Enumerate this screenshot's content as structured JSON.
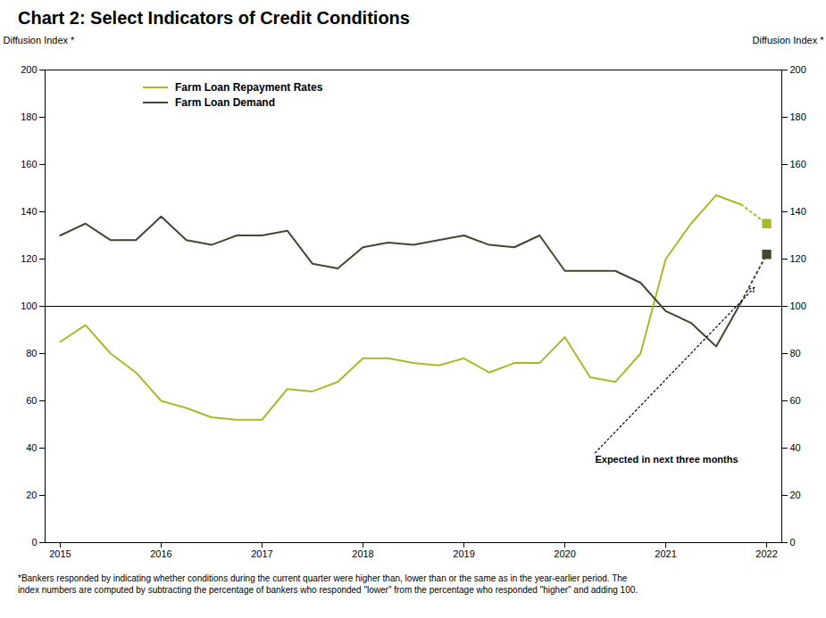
{
  "chart_data": {
    "type": "line",
    "title": "Chart 2: Select Indicators of Credit Conditions",
    "ylabel": "Diffusion Index *",
    "y2label": "Diffusion Index *",
    "footnote": "*Bankers responded by indicating  whether conditions  during the current quarter were higher than, lower than or the same as in the year-earlier period. The\nindex numbers are computed by subtracting the percentage of bankers who responded \"lower\"  from the percentage who responded \"higher\"  and adding 100.",
    "x": [
      2015.0,
      2015.25,
      2015.5,
      2015.75,
      2016.0,
      2016.25,
      2016.5,
      2016.75,
      2017.0,
      2017.25,
      2017.5,
      2017.75,
      2018.0,
      2018.25,
      2018.5,
      2018.75,
      2019.0,
      2019.25,
      2019.5,
      2019.75,
      2020.0,
      2020.25,
      2020.5,
      2020.75,
      2021.0,
      2021.25,
      2021.5,
      2021.75,
      2022.0
    ],
    "series": [
      {
        "name": "Farm Loan Repayment Rates",
        "color": "#aaba27",
        "line_style": "solid",
        "values": [
          85,
          92,
          80,
          72,
          60,
          57,
          53,
          52,
          52,
          65,
          64,
          68,
          78,
          78,
          76,
          75,
          78,
          72,
          76,
          76,
          87,
          70,
          68,
          80,
          120,
          135,
          147,
          143,
          null
        ]
      },
      {
        "color": "#aaba27",
        "line_style": "dotted",
        "values": [
          null,
          null,
          null,
          null,
          null,
          null,
          null,
          null,
          null,
          null,
          null,
          null,
          null,
          null,
          null,
          null,
          null,
          null,
          null,
          null,
          null,
          null,
          null,
          null,
          null,
          null,
          null,
          143,
          135
        ]
      },
      {
        "color": "#aaba27",
        "type": "scatter",
        "marker": "square",
        "values": [
          null,
          null,
          null,
          null,
          null,
          null,
          null,
          null,
          null,
          null,
          null,
          null,
          null,
          null,
          null,
          null,
          null,
          null,
          null,
          null,
          null,
          null,
          null,
          null,
          null,
          null,
          null,
          null,
          135
        ]
      },
      {
        "name": "Farm Loan Demand",
        "color": "#3d4a2e",
        "line_style": "solid",
        "values": [
          130,
          135,
          128,
          128,
          138,
          128,
          126,
          130,
          130,
          132,
          118,
          116,
          125,
          127,
          126,
          128,
          130,
          126,
          125,
          130,
          115,
          115,
          115,
          110,
          98,
          93,
          83,
          102,
          null
        ]
      },
      {
        "color": "#3d4a2e",
        "line_style": "dotted",
        "values": [
          null,
          null,
          null,
          null,
          null,
          null,
          null,
          null,
          null,
          null,
          null,
          null,
          null,
          null,
          null,
          null,
          null,
          null,
          null,
          null,
          null,
          null,
          null,
          null,
          null,
          null,
          null,
          102,
          122
        ]
      },
      {
        "color": "#3d4a2e",
        "type": "scatter",
        "marker": "square",
        "values": [
          null,
          null,
          null,
          null,
          null,
          null,
          null,
          null,
          null,
          null,
          null,
          null,
          null,
          null,
          null,
          null,
          null,
          null,
          null,
          null,
          null,
          null,
          null,
          null,
          null,
          null,
          null,
          null,
          122
        ]
      }
    ],
    "reference_lines": [
      {
        "y": 100,
        "color": "#000000"
      }
    ],
    "annotations": [
      {
        "text": "Expected in next three months",
        "x": 2020.3,
        "y": 38,
        "arrow_to": [
          2021.88,
          108
        ]
      }
    ],
    "xlim": [
      2014.85,
      2022.15
    ],
    "xticks": [
      2015,
      2016,
      2017,
      2018,
      2019,
      2020,
      2021,
      2022
    ],
    "ylim": [
      0,
      200
    ],
    "yticks": [
      0,
      20,
      40,
      60,
      80,
      100,
      120,
      140,
      160,
      180,
      200
    ],
    "y2lim": [
      0,
      200
    ],
    "y2ticks": [
      0,
      20,
      40,
      60,
      80,
      100,
      120,
      140,
      160,
      180,
      200
    ],
    "legend": "upper left",
    "grid": false
  }
}
